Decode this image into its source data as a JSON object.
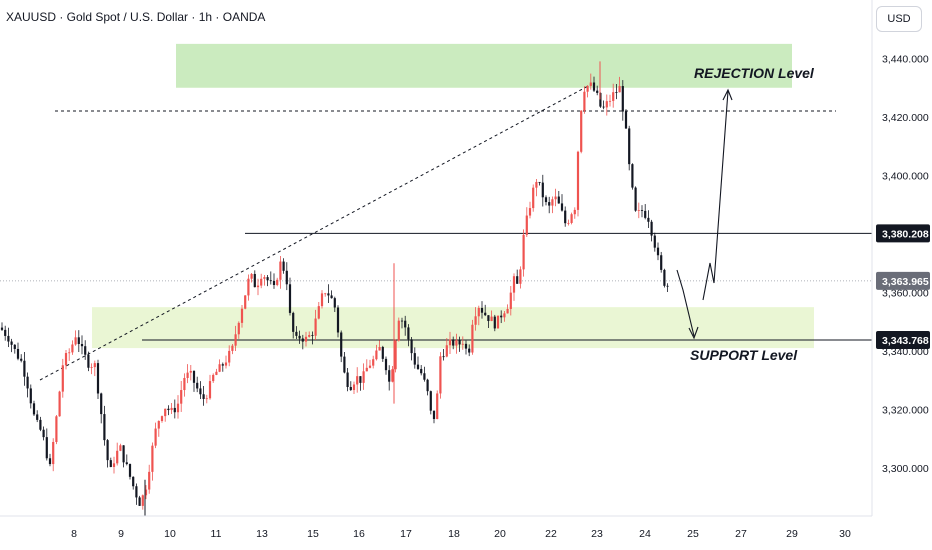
{
  "header": {
    "symbol_line": "XAUUSD · Gold Spot / U.S. Dollar · 1h · OANDA"
  },
  "currency_label": "USD",
  "chart_data": {
    "type": "candlestick",
    "symbol": "XAUUSD",
    "instrument": "Gold Spot / U.S. Dollar",
    "interval": "1h",
    "source": "OANDA",
    "ylim": [
      3283,
      3453
    ],
    "y_ticks": [
      3300,
      3320,
      3340,
      3360,
      3380,
      3400,
      3420,
      3440
    ],
    "y_tick_labels": [
      "3,300.000",
      "3,320.000",
      "3,340.000",
      "3,360.000",
      "3,380.000",
      "3,400.000",
      "3,420.000",
      "3,440.000"
    ],
    "x_ticks": [
      "8",
      "9",
      "10",
      "11",
      "13",
      "15",
      "16",
      "17",
      "18",
      "20",
      "22",
      "23",
      "24",
      "25",
      "27",
      "29",
      "30"
    ],
    "price_path": [
      [
        0,
        3348
      ],
      [
        8,
        3345
      ],
      [
        15,
        3340
      ],
      [
        22,
        3336
      ],
      [
        28,
        3328
      ],
      [
        35,
        3316
      ],
      [
        42,
        3312
      ],
      [
        50,
        3300
      ],
      [
        56,
        3316
      ],
      [
        63,
        3336
      ],
      [
        70,
        3340
      ],
      [
        76,
        3346
      ],
      [
        82,
        3340
      ],
      [
        88,
        3336
      ],
      [
        95,
        3335
      ],
      [
        100,
        3322
      ],
      [
        105,
        3308
      ],
      [
        110,
        3298
      ],
      [
        115,
        3304
      ],
      [
        120,
        3307
      ],
      [
        125,
        3302
      ],
      [
        130,
        3297
      ],
      [
        135,
        3292
      ],
      [
        140,
        3288
      ],
      [
        145,
        3292
      ],
      [
        150,
        3302
      ],
      [
        155,
        3312
      ],
      [
        160,
        3318
      ],
      [
        165,
        3321
      ],
      [
        172,
        3319
      ],
      [
        178,
        3322
      ],
      [
        184,
        3331
      ],
      [
        190,
        3332
      ],
      [
        196,
        3328
      ],
      [
        202,
        3323
      ],
      [
        208,
        3326
      ],
      [
        214,
        3332
      ],
      [
        220,
        3334
      ],
      [
        226,
        3337
      ],
      [
        232,
        3340
      ],
      [
        238,
        3350
      ],
      [
        244,
        3358
      ],
      [
        250,
        3366
      ],
      [
        256,
        3362
      ],
      [
        262,
        3367
      ],
      [
        268,
        3364
      ],
      [
        274,
        3361
      ],
      [
        280,
        3370
      ],
      [
        286,
        3367
      ],
      [
        290,
        3352
      ],
      [
        295,
        3343
      ],
      [
        300,
        3345
      ],
      [
        306,
        3344
      ],
      [
        312,
        3346
      ],
      [
        318,
        3353
      ],
      [
        324,
        3361
      ],
      [
        330,
        3359
      ],
      [
        336,
        3354
      ],
      [
        340,
        3340
      ],
      [
        345,
        3331
      ],
      [
        350,
        3328
      ],
      [
        356,
        3331
      ],
      [
        362,
        3330
      ],
      [
        368,
        3335
      ],
      [
        374,
        3337
      ],
      [
        380,
        3341
      ],
      [
        386,
        3335
      ],
      [
        390,
        3328
      ],
      [
        394,
        3340
      ],
      [
        398,
        3352
      ],
      [
        404,
        3350
      ],
      [
        410,
        3341
      ],
      [
        416,
        3335
      ],
      [
        422,
        3332
      ],
      [
        428,
        3325
      ],
      [
        432,
        3316
      ],
      [
        436,
        3319
      ],
      [
        440,
        3338
      ],
      [
        446,
        3341
      ],
      [
        452,
        3343
      ],
      [
        458,
        3342
      ],
      [
        464,
        3344
      ],
      [
        468,
        3337
      ],
      [
        472,
        3350
      ],
      [
        478,
        3356
      ],
      [
        484,
        3353
      ],
      [
        490,
        3351
      ],
      [
        496,
        3349
      ],
      [
        502,
        3353
      ],
      [
        508,
        3356
      ],
      [
        514,
        3364
      ],
      [
        518,
        3362
      ],
      [
        524,
        3380
      ],
      [
        530,
        3390
      ],
      [
        536,
        3399
      ],
      [
        542,
        3394
      ],
      [
        548,
        3388
      ],
      [
        554,
        3393
      ],
      [
        560,
        3389
      ],
      [
        566,
        3383
      ],
      [
        572,
        3388
      ],
      [
        576,
        3390
      ],
      [
        579,
        3418
      ],
      [
        584,
        3430
      ],
      [
        590,
        3431
      ],
      [
        596,
        3428
      ],
      [
        602,
        3422
      ],
      [
        608,
        3425
      ],
      [
        614,
        3428
      ],
      [
        620,
        3430
      ],
      [
        625,
        3418
      ],
      [
        630,
        3400
      ],
      [
        636,
        3386
      ],
      [
        642,
        3388
      ],
      [
        648,
        3386
      ],
      [
        654,
        3378
      ],
      [
        660,
        3368
      ],
      [
        666,
        3362
      ],
      [
        670,
        3363
      ]
    ],
    "series": [
      {
        "name": "REJECTION Level",
        "type": "zone",
        "y": [
          3430,
          3445
        ],
        "x_index": [
          176,
          792
        ],
        "color": "#b9e4a9"
      },
      {
        "name": "SUPPORT Level",
        "type": "zone",
        "y": [
          3341,
          3355
        ],
        "x_index": [
          92,
          814
        ],
        "color": "#e3f3c6"
      },
      {
        "name": "3,380.208",
        "type": "hline",
        "y": 3380.208
      },
      {
        "name": "3,343.768",
        "type": "hline",
        "y": 3343.768
      },
      {
        "name": "3,363.965",
        "type": "hline",
        "y": 3363.965,
        "style": "current"
      }
    ],
    "price_labels": [
      {
        "text": "3,380.208",
        "y": 3380.208,
        "style": "dark"
      },
      {
        "text": "3,363.965",
        "y": 3363.965,
        "style": "grey"
      },
      {
        "text": "3,343.768",
        "y": 3343.768,
        "style": "dark"
      }
    ],
    "annotations": [
      {
        "text": "REJECTION Level",
        "y": 3436
      },
      {
        "text": "SUPPORT Level",
        "y": 3339
      }
    ],
    "colors": {
      "up": "#ef5350",
      "down": "#131722"
    }
  }
}
